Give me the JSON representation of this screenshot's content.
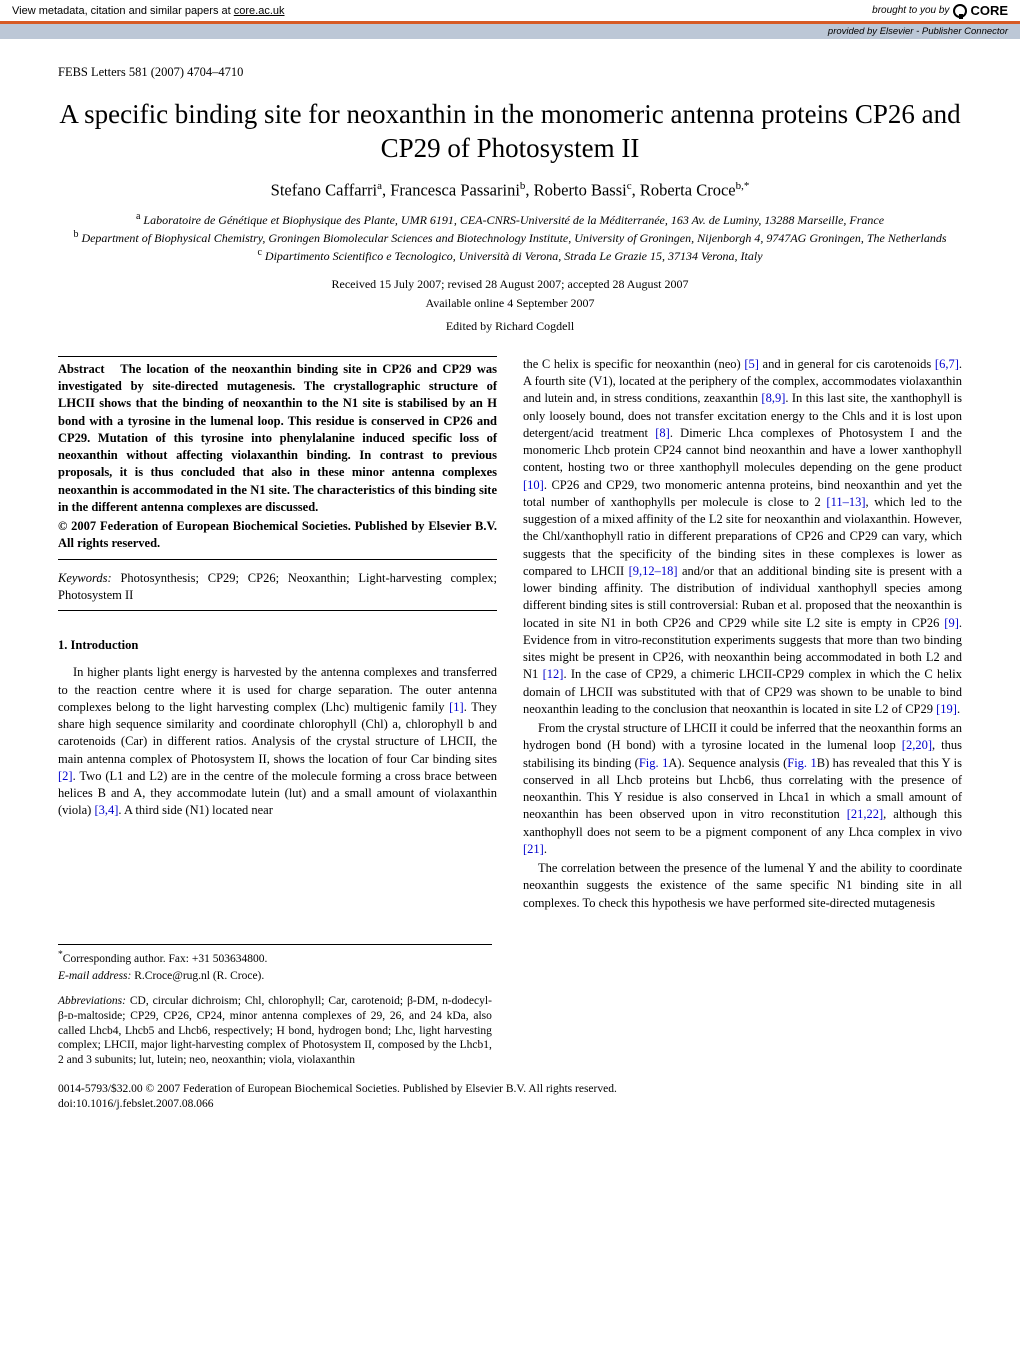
{
  "banner": {
    "left_prefix": "View metadata, citation and similar papers at ",
    "left_link": "core.ac.uk",
    "right_prefix": "brought to you by",
    "core": "CORE",
    "provided_by_prefix": "provided by ",
    "provided_by": "Elsevier - Publisher Connector"
  },
  "journal": "FEBS Letters 581 (2007) 4704–4710",
  "title": "A specific binding site for neoxanthin in the monomeric antenna proteins CP26 and CP29 of Photosystem II",
  "authors": {
    "a1": "Stefano Caffarri",
    "s1": "a",
    "a2": "Francesca Passarini",
    "s2": "b",
    "a3": "Roberto Bassi",
    "s3": "c",
    "a4": "Roberta Croce",
    "s4": "b,*"
  },
  "affiliations": {
    "a": "Laboratoire de Génétique et Biophysique des Plante, UMR 6191, CEA-CNRS-Université de la Méditerranée, 163 Av. de Luminy, 13288 Marseille, France",
    "b": "Department of Biophysical Chemistry, Groningen Biomolecular Sciences and Biotechnology Institute, University of Groningen, Nijenborgh 4, 9747AG Groningen, The Netherlands",
    "c": "Dipartimento Scientifico e Tecnologico, Università di Verona, Strada Le Grazie 15, 37134 Verona, Italy"
  },
  "dates": {
    "received": "Received 15 July 2007; revised 28 August 2007; accepted 28 August 2007",
    "online": "Available online 4 September 2007"
  },
  "editor": "Edited by Richard Cogdell",
  "abstract_label": "Abstract",
  "abstract": "The location of the neoxanthin binding site in CP26 and CP29 was investigated by site-directed mutagenesis. The crystallographic structure of LHCII shows that the binding of neoxanthin to the N1 site is stabilised by an H bond with a tyrosine in the lumenal loop. This residue is conserved in CP26 and CP29. Mutation of this tyrosine into phenylalanine induced specific loss of neoxanthin without affecting violaxanthin binding. In contrast to previous proposals, it is thus concluded that also in these minor antenna complexes neoxanthin is accommodated in the N1 site. The characteristics of this binding site in the different antenna complexes are discussed.",
  "copyright": "© 2007 Federation of European Biochemical Societies. Published by Elsevier B.V. All rights reserved.",
  "keywords_label": "Keywords:",
  "keywords": "Photosynthesis; CP29; CP26; Neoxanthin; Light-harvesting complex; Photosystem II",
  "section1": "1. Introduction",
  "intro_p1a": "In higher plants light energy is harvested by the antenna complexes and transferred to the reaction centre where it is used for charge separation. The outer antenna complexes belong to the light harvesting complex (Lhc) multigenic family ",
  "ref1": "[1]",
  "intro_p1b": ". They share high sequence similarity and coordinate chlorophyll (Chl) a, chlorophyll b and carotenoids (Car) in different ratios. Analysis of the crystal structure of LHCII, the main antenna complex of Photosystem II, shows the location of four Car binding sites ",
  "ref2": "[2]",
  "intro_p1c": ". Two (L1 and L2) are in the centre of the molecule forming a cross brace between helices B and A, they accommodate lutein (lut) and a small amount of violaxanthin (viola) ",
  "ref34": "[3,4]",
  "intro_p1d": ". A third side (N1) located near ",
  "right_p1a": "the C helix is specific for neoxanthin (neo) ",
  "ref5": "[5]",
  "right_p1b": " and in general for cis carotenoids ",
  "ref67": "[6,7]",
  "right_p1c": ". A fourth site (V1), located at the periphery of the complex, accommodates violaxanthin and lutein and, in stress conditions, zeaxanthin ",
  "ref89": "[8,9]",
  "right_p1d": ". In this last site, the xanthophyll is only loosely bound, does not transfer excitation energy to the Chls and it is lost upon detergent/acid treatment ",
  "ref8": "[8]",
  "right_p1e": ". Dimeric Lhca complexes of Photosystem I and the monomeric Lhcb protein CP24 cannot bind neoxanthin and have a lower xanthophyll content, hosting two or three xanthophyll molecules depending on the gene product ",
  "ref10": "[10]",
  "right_p1f": ". CP26 and CP29, two monomeric antenna proteins, bind neoxanthin and yet the total number of xanthophylls per molecule is close to 2 ",
  "ref1113": "[11–13]",
  "right_p1g": ", which led to the suggestion of a mixed affinity of the L2 site for neoxanthin and violaxanthin. However, the Chl/xanthophyll ratio in different preparations of CP26 and CP29 can vary, which suggests that the specificity of the binding sites in these complexes is lower as compared to LHCII ",
  "ref91218": "[9,12–18]",
  "right_p1h": " and/or that an additional binding site is present with a lower binding affinity. The distribution of individual xanthophyll species among different binding sites is still controversial: Ruban et al. proposed that the neoxanthin is located in site N1 in both CP26 and CP29 while site L2 site is empty in CP26 ",
  "ref9": "[9]",
  "right_p1i": ". Evidence from in vitro-reconstitution experiments suggests that more than two binding sites might be present in CP26, with neoxanthin being accommodated in both L2 and N1 ",
  "ref12": "[12]",
  "right_p1j": ". In the case of CP29, a chimeric LHCII-CP29 complex in which the C helix domain of LHCII was substituted with that of CP29 was shown to be unable to bind neoxanthin leading to the conclusion that neoxanthin is located in site L2 of CP29 ",
  "ref19": "[19]",
  "right_p1k": ".",
  "right_p2a": "From the crystal structure of LHCII it could be inferred that the neoxanthin forms an hydrogen bond (H bond) with a tyrosine located in the lumenal loop ",
  "ref220": "[2,20]",
  "right_p2b": ", thus stabilising its binding (",
  "fig1a": "Fig. 1",
  "right_p2c": "A). Sequence analysis (",
  "fig1b": "Fig. 1",
  "right_p2d": "B) has revealed that this Y is conserved in all Lhcb proteins but Lhcb6, thus correlating with the presence of neoxanthin. This Y residue is also conserved in Lhca1 in which a small amount of neoxanthin has been observed upon in vitro reconstitution ",
  "ref2122": "[21,22]",
  "right_p2e": ", although this xanthophyll does not seem to be a pigment component of any Lhca complex in vivo ",
  "ref21": "[21]",
  "right_p2f": ".",
  "right_p3": "The correlation between the presence of the lumenal Y and the ability to coordinate neoxanthin suggests the existence of the same specific N1 binding site in all complexes. To check this hypothesis we have performed site-directed mutagenesis",
  "footnotes": {
    "corr": "Corresponding author. Fax: +31 503634800.",
    "email_label": "E-mail address:",
    "email": "R.Croce@rug.nl (R. Croce).",
    "abbrev_label": "Abbreviations:",
    "abbrev": "CD, circular dichroism; Chl, chlorophyll; Car, carotenoid; β-DM, n-dodecyl-β-ᴅ-maltoside; CP29, CP26, CP24, minor antenna complexes of 29, 26, and 24 kDa, also called Lhcb4, Lhcb5 and Lhcb6, respectively; H bond, hydrogen bond; Lhc, light harvesting complex; LHCII, major light-harvesting complex of Photosystem II, composed by the Lhcb1, 2 and 3 subunits; lut, lutein; neo, neoxanthin; viola, violaxanthin"
  },
  "bottom": {
    "line1": "0014-5793/$32.00 © 2007 Federation of European Biochemical Societies. Published by Elsevier B.V. All rights reserved.",
    "line2": "doi:10.1016/j.febslet.2007.08.066"
  },
  "colors": {
    "orange": "#d75a24",
    "provided_bg": "#bcc7d6",
    "ref": "#0000cc"
  }
}
